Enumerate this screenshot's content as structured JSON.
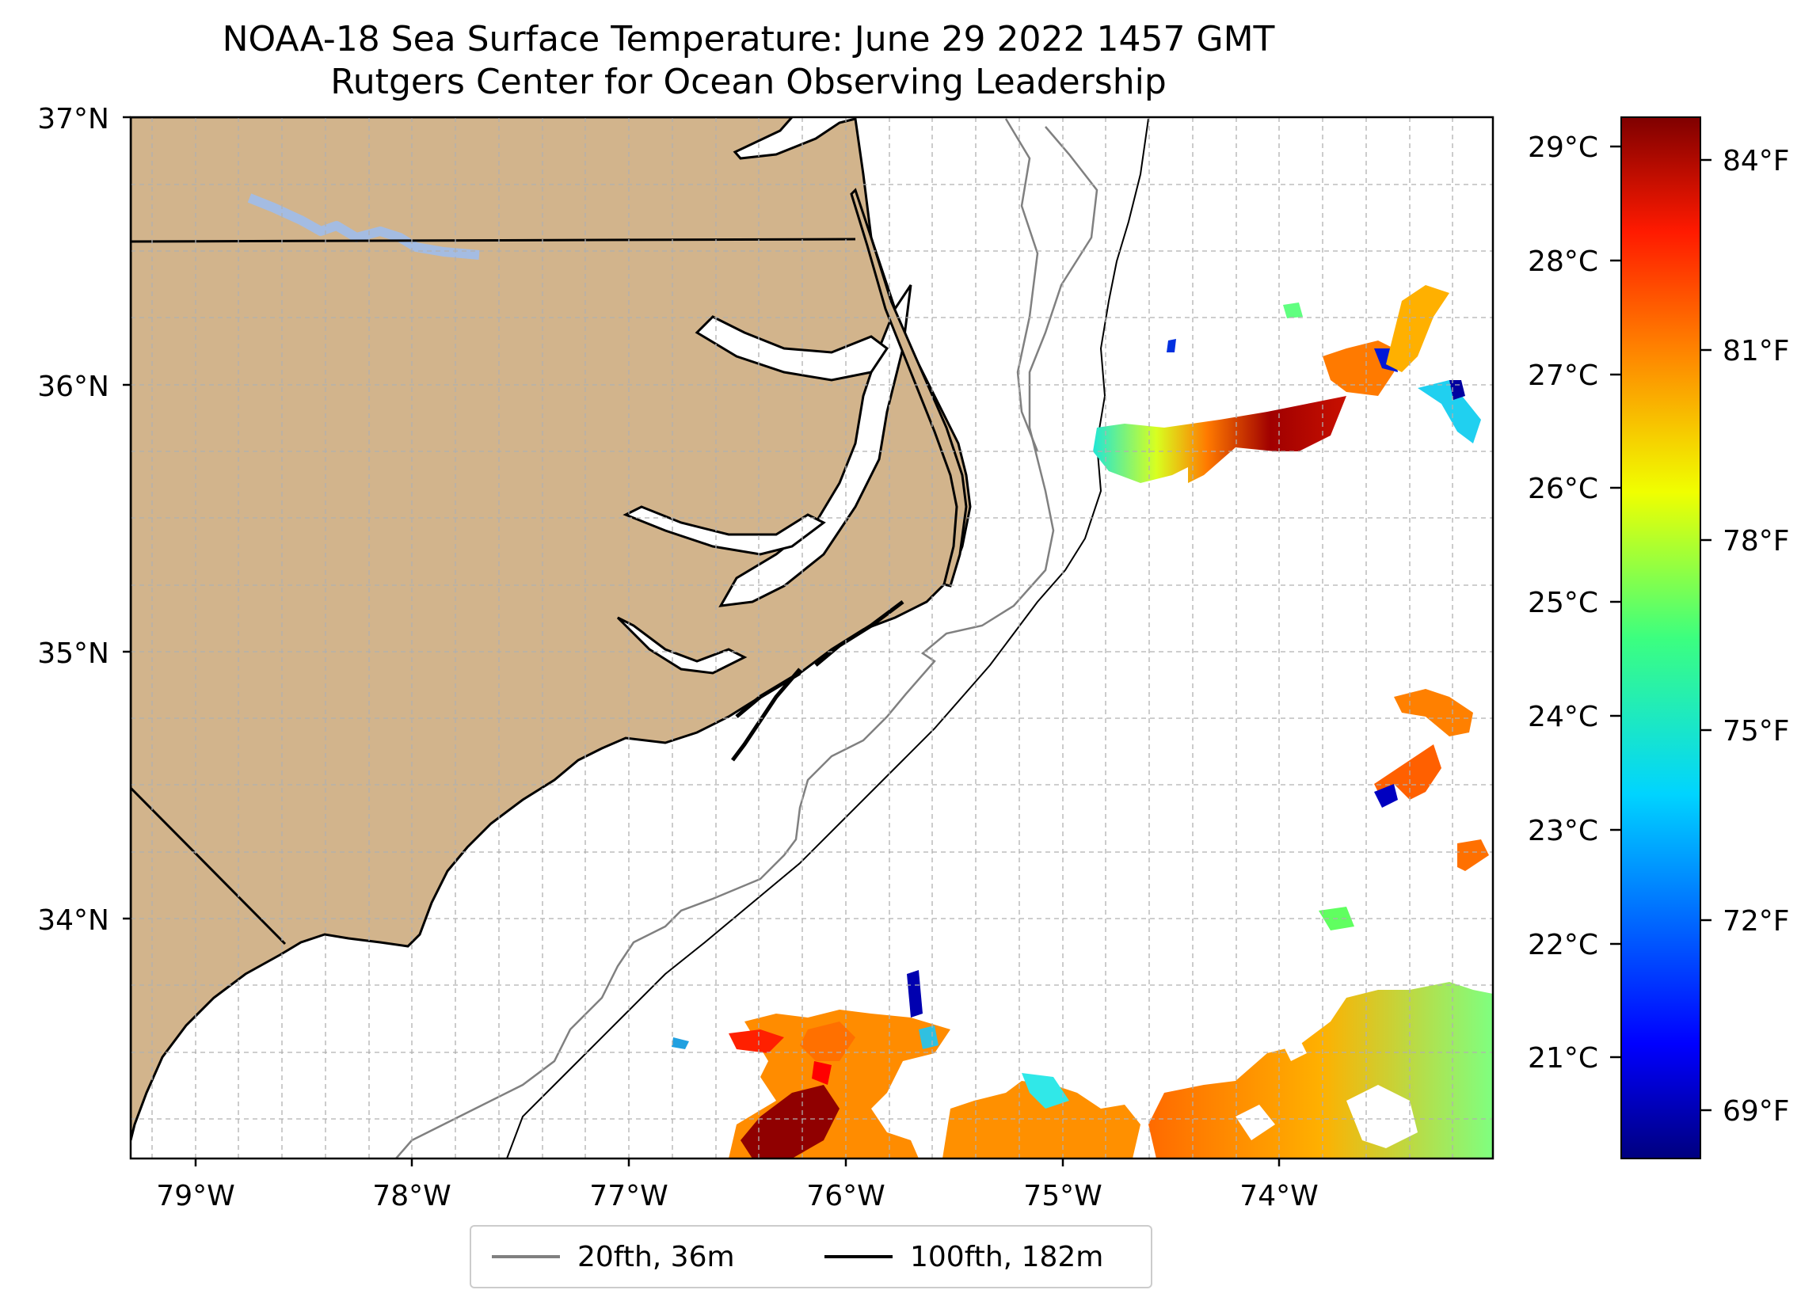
{
  "title": "NOAA-18 Sea Surface Temperature: June 29 2022 1457 GMT",
  "subtitle": "Rutgers Center for Ocean Observing Leadership",
  "map": {
    "extent": {
      "lon_min": -79.3,
      "lon_max": -73.1,
      "lat_min": 33.1,
      "lat_max": 37.0
    },
    "land_color": "#d2b48c",
    "lake_color": "#a4bce2",
    "lat_ticks": [
      "37°N",
      "36°N",
      "35°N",
      "34°N"
    ],
    "lon_ticks": [
      "79°W",
      "78°W",
      "77°W",
      "76°W",
      "75°W",
      "74°W"
    ]
  },
  "colorbar": {
    "cmap": "jet",
    "celsius_ticks": [
      "29°C",
      "28°C",
      "27°C",
      "26°C",
      "25°C",
      "24°C",
      "23°C",
      "22°C",
      "21°C"
    ],
    "fahrenheit_ticks": [
      "84°F",
      "81°F",
      "78°F",
      "75°F",
      "72°F",
      "69°F"
    ]
  },
  "legend": {
    "items": [
      {
        "label": "20fth, 36m",
        "color": "#808080"
      },
      {
        "label": "100fth, 182m",
        "color": "#000000"
      }
    ]
  }
}
